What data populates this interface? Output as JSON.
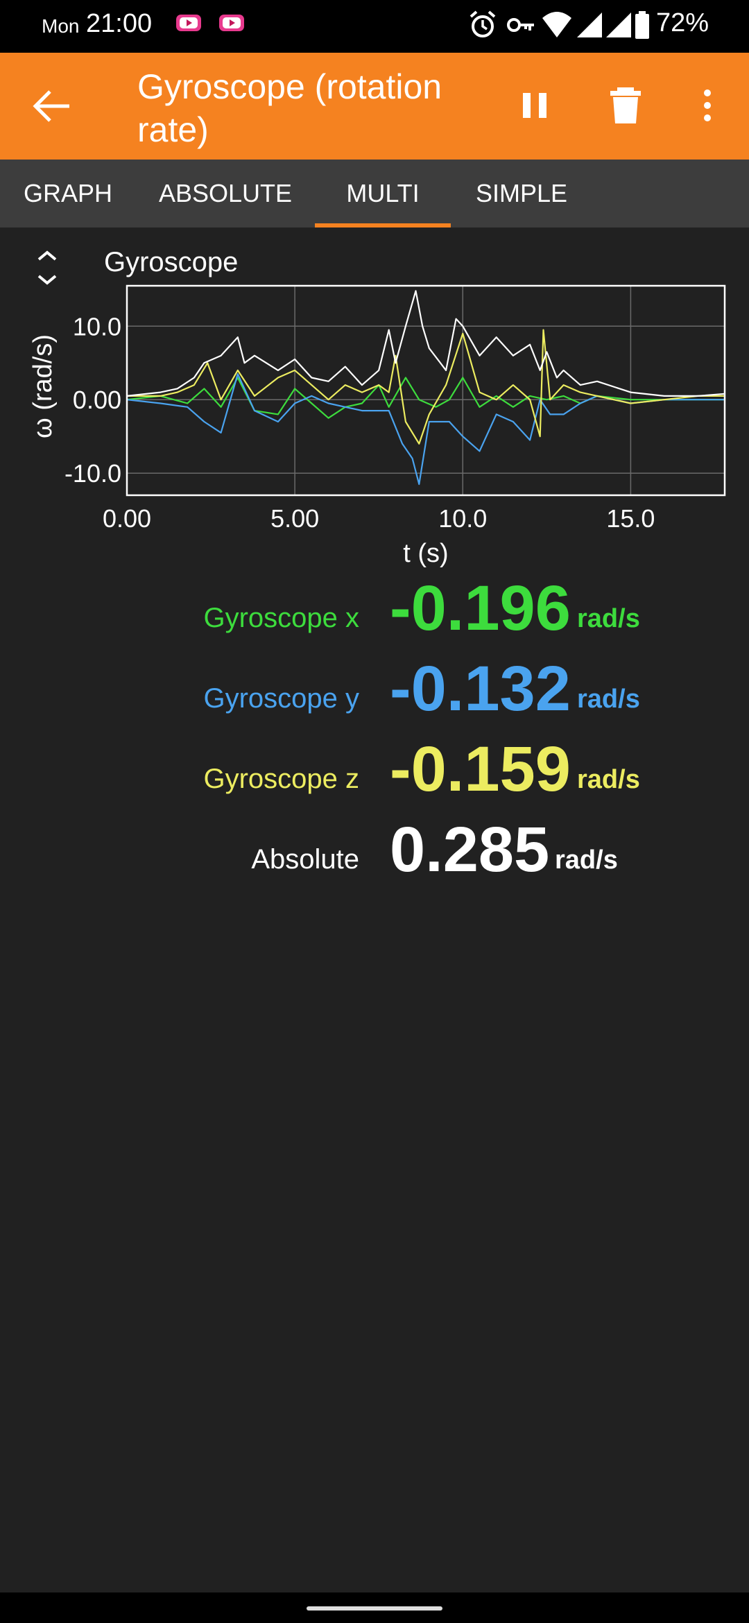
{
  "status_bar": {
    "day": "Mon",
    "time": "21:00",
    "battery": "72%",
    "icons": [
      "youtube-notification-icon",
      "youtube-notification-icon",
      "alarm-icon",
      "vpn-key-icon",
      "wifi-icon",
      "signal-icon",
      "signal-icon",
      "battery-icon"
    ]
  },
  "app_bar": {
    "title": "Gyroscope (rotation rate)",
    "bg_color": "#f58220",
    "actions": [
      "back-arrow-icon",
      "pause-icon",
      "delete-icon",
      "more-vert-icon"
    ]
  },
  "tabs": [
    {
      "label": "GRAPH"
    },
    {
      "label": "ABSOLUTE"
    },
    {
      "label": "MULTI",
      "selected": true
    },
    {
      "label": "SIMPLE"
    }
  ],
  "graph": {
    "title": "Gyroscope"
  },
  "chart_data": {
    "type": "line",
    "title": "Gyroscope",
    "xlabel": "t (s)",
    "ylabel": "ω (rad/s)",
    "xlim": [
      0,
      17.8
    ],
    "ylim": [
      -13,
      15.5
    ],
    "x_ticks": [
      "0.00",
      "5.00",
      "10.0",
      "15.0"
    ],
    "y_ticks": [
      "10.0",
      "0.00",
      "-10.0"
    ],
    "grid": true,
    "series": [
      {
        "name": "Gyroscope x",
        "color": "#3ddc3d",
        "x": [
          0,
          1,
          1.8,
          2.3,
          2.8,
          3.3,
          3.8,
          4.5,
          5,
          5.5,
          6,
          6.5,
          7,
          7.5,
          7.8,
          8.3,
          8.7,
          9.2,
          9.6,
          10,
          10.5,
          11,
          11.5,
          12,
          12.5,
          13,
          13.5,
          14,
          15,
          16,
          17.8
        ],
        "y": [
          0,
          0.5,
          -0.5,
          1.5,
          -1,
          3,
          -1.5,
          -2,
          1.5,
          -0.5,
          -2.5,
          -1,
          -0.5,
          2,
          -1,
          3,
          0,
          -1,
          0,
          3,
          -1,
          0.5,
          -1,
          0.5,
          0,
          0.5,
          -0.5,
          0.5,
          0,
          0,
          0
        ]
      },
      {
        "name": "Gyroscope y",
        "color": "#4aa3ef",
        "x": [
          0,
          1,
          1.8,
          2.3,
          2.8,
          3.3,
          3.8,
          4.5,
          5,
          5.5,
          6,
          6.5,
          7,
          7.5,
          7.8,
          8.2,
          8.5,
          8.7,
          9,
          9.6,
          10,
          10.5,
          11,
          11.5,
          12,
          12.3,
          12.6,
          13,
          13.5,
          14,
          15,
          16,
          17.8
        ],
        "y": [
          0,
          -0.5,
          -1,
          -3,
          -4.5,
          3.5,
          -1.5,
          -3,
          -0.5,
          0.5,
          -0.5,
          -1,
          -1.5,
          -1.5,
          -1.5,
          -6,
          -8,
          -11.5,
          -3,
          -3,
          -5,
          -7,
          -2,
          -3,
          -5.5,
          0,
          -2,
          -2,
          -0.5,
          0.5,
          -0.5,
          0,
          0
        ]
      },
      {
        "name": "Gyroscope z",
        "color": "#ecec60",
        "x": [
          0,
          1,
          1.5,
          2,
          2.4,
          2.8,
          3.3,
          3.8,
          4.5,
          5,
          5.5,
          6,
          6.5,
          7,
          7.5,
          7.8,
          8,
          8.3,
          8.7,
          9,
          9.5,
          10,
          10.5,
          11,
          11.5,
          12,
          12.3,
          12.4,
          12.6,
          13,
          13.5,
          14,
          15,
          16,
          17,
          17.8
        ],
        "y": [
          0.5,
          0.5,
          1,
          2,
          5,
          0,
          4,
          0.5,
          3,
          4,
          2,
          0,
          2,
          1,
          2,
          1,
          6,
          -3,
          -6,
          -2,
          2,
          9,
          1,
          0,
          2,
          0,
          -5,
          9.5,
          0,
          2,
          1,
          0.5,
          -0.5,
          0,
          0.5,
          0.5
        ]
      },
      {
        "name": "Absolute",
        "color": "#ffffff",
        "x": [
          0,
          1,
          1.5,
          2,
          2.3,
          2.8,
          3.3,
          3.5,
          3.8,
          4.5,
          5,
          5.5,
          6,
          6.5,
          7,
          7.5,
          7.8,
          8,
          8.3,
          8.6,
          8.8,
          9,
          9.5,
          9.8,
          10,
          10.5,
          11,
          11.5,
          12,
          12.3,
          12.5,
          12.8,
          13,
          13.5,
          14,
          15,
          16,
          17,
          17.8
        ],
        "y": [
          0.5,
          1,
          1.5,
          3,
          5,
          6,
          8.5,
          5,
          6,
          4,
          5.5,
          3,
          2.5,
          4.5,
          2,
          4,
          9.5,
          5,
          10,
          14.8,
          10,
          7,
          4,
          11,
          10,
          6,
          8.5,
          6,
          7.5,
          4,
          6.5,
          3,
          4,
          2,
          2.5,
          1,
          0.5,
          0.5,
          0.8
        ]
      }
    ]
  },
  "readouts": [
    {
      "label": "Gyroscope x",
      "value": "-0.196",
      "unit": "rad/s",
      "color": "#3ddc3d"
    },
    {
      "label": "Gyroscope y",
      "value": "-0.132",
      "unit": "rad/s",
      "color": "#4aa3ef"
    },
    {
      "label": "Gyroscope z",
      "value": "-0.159",
      "unit": "rad/s",
      "color": "#ecec60"
    },
    {
      "label": "Absolute",
      "value": "0.285",
      "unit": "rad/s",
      "color": "#ffffff"
    }
  ]
}
